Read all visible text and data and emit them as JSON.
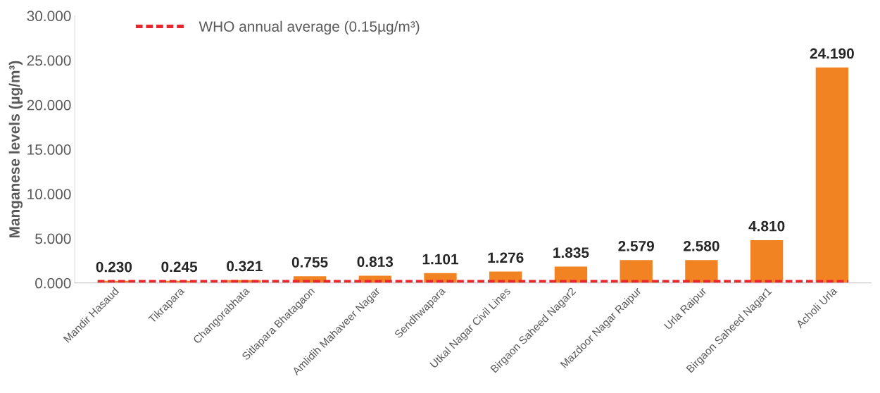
{
  "chart_data": {
    "type": "bar",
    "ylabel": "Manganese levels (µg/m³)",
    "categories": [
      "Mandir Hasaud",
      "Tikrapara",
      "Changorabhata",
      "Sitlapara Bhatagaon",
      "Amlidih Mahaveer Nagar",
      "Sendhwapara",
      "Utkal Nagar Civil Lines",
      "Birgaon Saheed Nagar2",
      "Mazdoor Nagar Raipur",
      "Urla Raipur",
      "Birgaon Saheed Nagar1",
      "Acholi Urla"
    ],
    "values": [
      0.23,
      0.245,
      0.321,
      0.755,
      0.813,
      1.101,
      1.276,
      1.835,
      2.579,
      2.58,
      4.81,
      24.19
    ],
    "value_labels": [
      "0.230",
      "0.245",
      "0.321",
      "0.755",
      "0.813",
      "1.101",
      "1.276",
      "1.835",
      "2.579",
      "2.580",
      "4.810",
      "24.190"
    ],
    "color": "#f28322",
    "ylim": [
      0,
      30
    ],
    "yticks": [
      {
        "value": 0,
        "label": "0.000"
      },
      {
        "value": 5,
        "label": "5.000"
      },
      {
        "value": 10,
        "label": "10.000"
      },
      {
        "value": 15,
        "label": "15.000"
      },
      {
        "value": 20,
        "label": "20.000"
      },
      {
        "value": 25,
        "label": "25.000"
      },
      {
        "value": 30,
        "label": "30.000"
      }
    ],
    "ref_lines": [
      {
        "axis": "y",
        "value": 0.15,
        "label": "WHO annual average (0.15µg/m³)",
        "color": "#e8262b",
        "line_style": "dashed"
      }
    ],
    "legend": "top left",
    "grid": false
  }
}
